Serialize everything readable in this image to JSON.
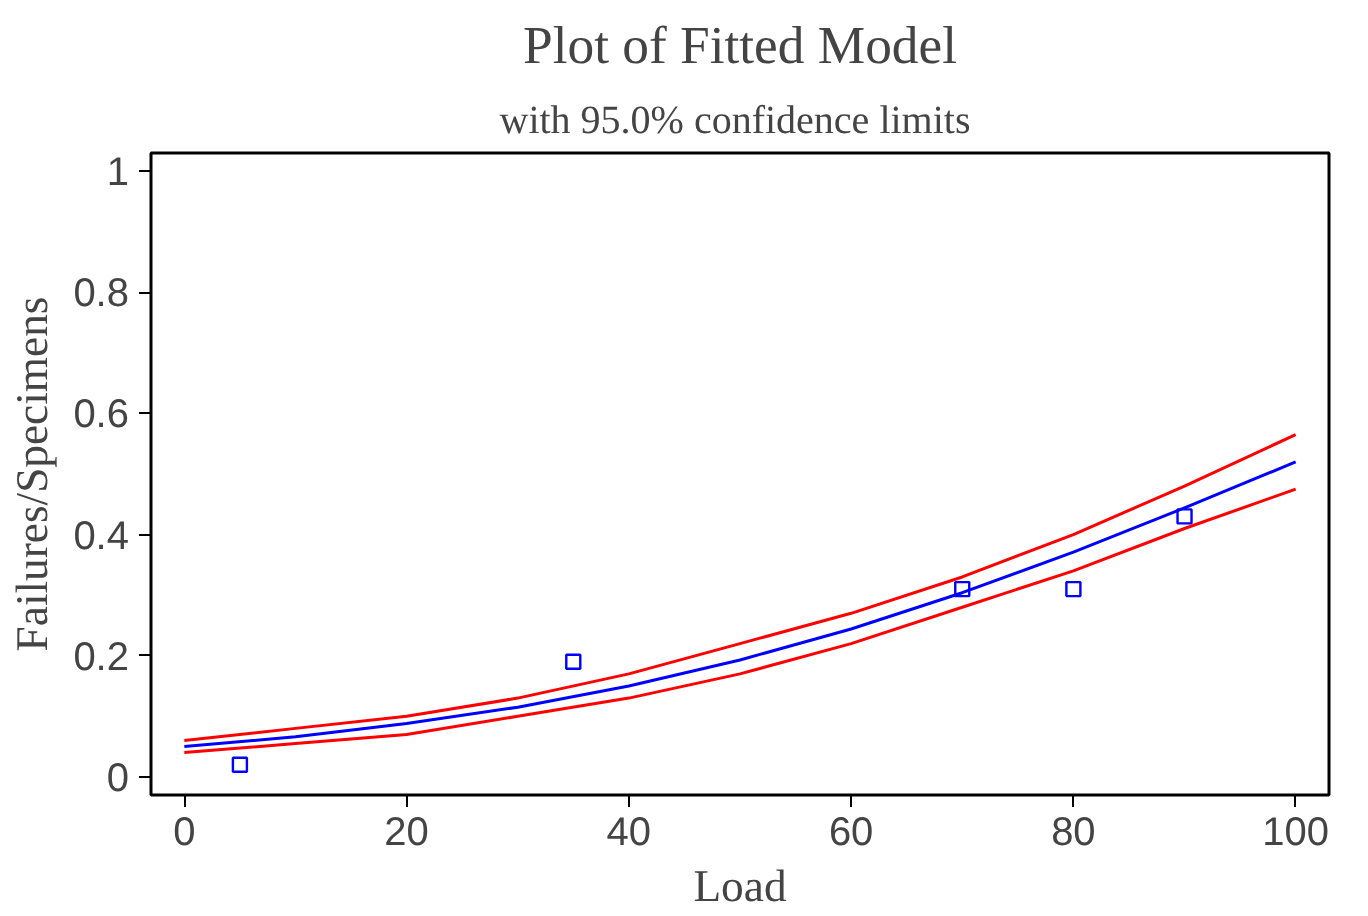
{
  "chart_data": {
    "type": "line",
    "title": "Plot of Fitted Model",
    "subtitle": "with  95.0% confidence limits",
    "xlabel": "Load",
    "ylabel": "Failures/Specimens",
    "xlim": [
      -3,
      103
    ],
    "ylim": [
      -0.03,
      1.03
    ],
    "xticks": [
      0,
      20,
      40,
      60,
      80,
      100
    ],
    "yticks": [
      0,
      0.2,
      0.4,
      0.6,
      0.8,
      1
    ],
    "grid": false,
    "x": [
      0,
      10,
      20,
      30,
      40,
      50,
      60,
      70,
      80,
      90,
      100
    ],
    "series": [
      {
        "type": "scatter",
        "marker": "square",
        "color": "#0000ff",
        "x": [
          5,
          35,
          70,
          80,
          90
        ],
        "values": [
          0.02,
          0.19,
          0.31,
          0.31,
          0.43
        ]
      },
      {
        "color": "#0000ff",
        "values": [
          0.05,
          0.066,
          0.088,
          0.115,
          0.15,
          0.193,
          0.244,
          0.304,
          0.371,
          0.444,
          0.52
        ]
      },
      {
        "color": "#ff0000",
        "values": [
          0.06,
          0.08,
          0.1,
          0.13,
          0.17,
          0.22,
          0.27,
          0.33,
          0.4,
          0.48,
          0.565
        ]
      },
      {
        "color": "#ff0000",
        "values": [
          0.04,
          0.055,
          0.07,
          0.1,
          0.13,
          0.17,
          0.22,
          0.28,
          0.34,
          0.41,
          0.475
        ]
      }
    ]
  }
}
